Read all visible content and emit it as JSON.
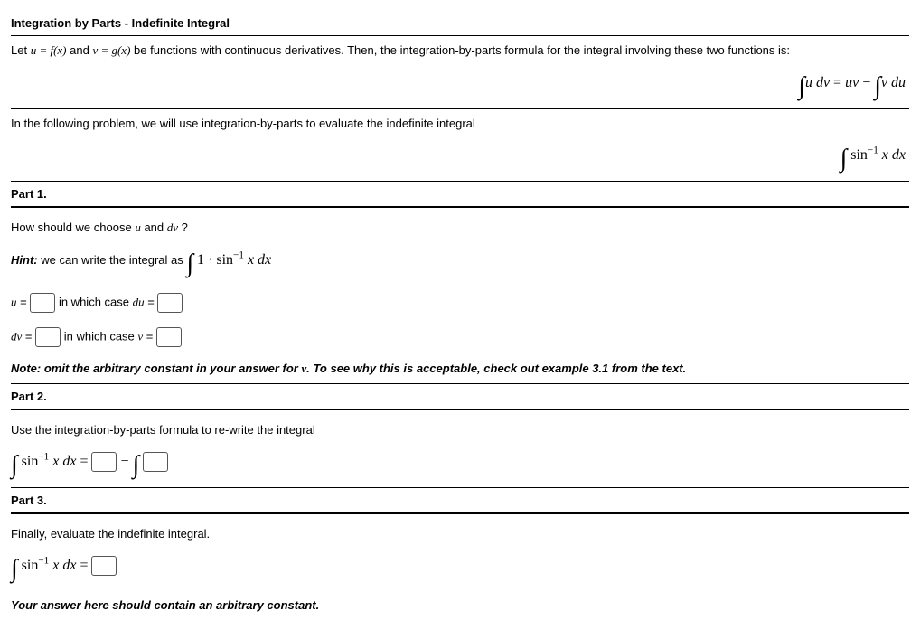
{
  "title": "Integration by Parts - Indefinite Integral",
  "intro_prefix": "Let ",
  "intro_eq_u": "u = f(x)",
  "intro_and": " and ",
  "intro_eq_v": "v = g(x)",
  "intro_suffix": " be functions with continuous derivatives. Then, the integration-by-parts formula for the integral involving these two functions is:",
  "formula_main": "∫ u dv = uv − ∫ v du",
  "lead2": "In the following problem, we will use integration-by-parts to evaluate the indefinite integral",
  "formula_target": "∫ sin⁻¹ x dx",
  "part1_label": "Part 1.",
  "part1_q": "How should we choose ",
  "part1_u": "u",
  "part1_and": " and ",
  "part1_dv": "dv",
  "part1_qmark": "?",
  "hint_label": "Hint:",
  "hint_text": " we can write the integral as ",
  "hint_formula": "∫ 1 · sin⁻¹ x dx",
  "u_eq": "u =",
  "in_which_du": " in which case ",
  "du_eq": "du =",
  "dv_eq": "dv =",
  "in_which_v": " in which case ",
  "v_eq": "v =",
  "note1_prefix": "Note: omit the arbitrary constant in your answer for ",
  "note1_v": "v",
  "note1_suffix": ". To see why this is acceptable, check out example 3.1 from the text.",
  "part2_label": "Part 2.",
  "part2_text": "Use the integration-by-parts formula to re-write the integral",
  "part2_lhs": "∫ sin⁻¹ x dx =",
  "minus": " − ",
  "int_sym": "∫",
  "part3_label": "Part 3.",
  "part3_text": "Finally, evaluate the indefinite integral.",
  "part3_lhs": "∫ sin⁻¹ x dx =",
  "note2": "Your answer here should contain an arbitrary constant."
}
